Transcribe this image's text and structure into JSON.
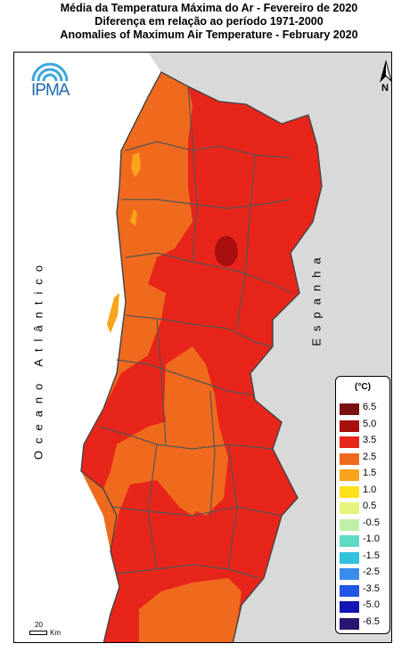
{
  "titles": {
    "line1": "Média da Temperatura Máxima do Ar - Fevereiro de 2020",
    "line2": "Diferença em relação ao período 1971-2000",
    "line3": "Anomalies of Maximum Air Temperature - February 2020"
  },
  "logo": {
    "text": "IPMA",
    "icon": "ipma-arc-logo"
  },
  "north_arrow": {
    "label": "N",
    "icon": "north-arrow-icon"
  },
  "labels": {
    "ocean": "Oceano Atlântico",
    "spain": "Espanha"
  },
  "legend": {
    "unit": "(°C)",
    "entries": [
      {
        "label": "6.5",
        "color": "#7a1010"
      },
      {
        "label": "5.0",
        "color": "#a80f0f"
      },
      {
        "label": "3.5",
        "color": "#e8251a"
      },
      {
        "label": "2.5",
        "color": "#f06a1e"
      },
      {
        "label": "1.5",
        "color": "#f9a41c"
      },
      {
        "label": "1.0",
        "color": "#ffe01a"
      },
      {
        "label": "0.5",
        "color": "#e6f57a"
      },
      {
        "label": "-0.5",
        "color": "#bff0a8"
      },
      {
        "label": "-1.0",
        "color": "#5edbc2"
      },
      {
        "label": "-1.5",
        "color": "#2ec2dc"
      },
      {
        "label": "-2.5",
        "color": "#3a8cec"
      },
      {
        "label": "-3.5",
        "color": "#2155e6"
      },
      {
        "label": "-5.0",
        "color": "#1414b4"
      },
      {
        "label": "-6.5",
        "color": "#2a1670"
      }
    ]
  },
  "scale_bar": {
    "value": "20",
    "unit": "Km"
  },
  "colors": {
    "land_spain": "#d9d9d9",
    "anomaly_low": "#f06a1e",
    "anomaly_high": "#e8251a",
    "anomaly_max": "#a80f0f",
    "anomaly_min": "#f9a41c",
    "boundary": "#555555"
  }
}
